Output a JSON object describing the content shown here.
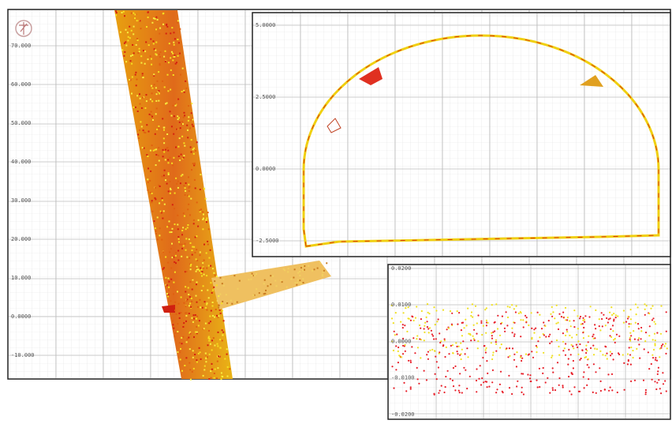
{
  "panels": {
    "plan_view": {
      "y_labels": [
        "70.000",
        "60.000",
        "50.000",
        "40.000",
        "30.000",
        "20.000",
        "10.000",
        "0.0000",
        "-10.000"
      ]
    },
    "cross_section": {
      "y_labels": [
        "5.0000",
        "2.5000",
        "0.0000",
        "-2.5000"
      ]
    },
    "deviation": {
      "y_labels": [
        "0.0200",
        "0.0100",
        "0.0000",
        "-0.0100",
        "-0.0200"
      ]
    }
  }
}
